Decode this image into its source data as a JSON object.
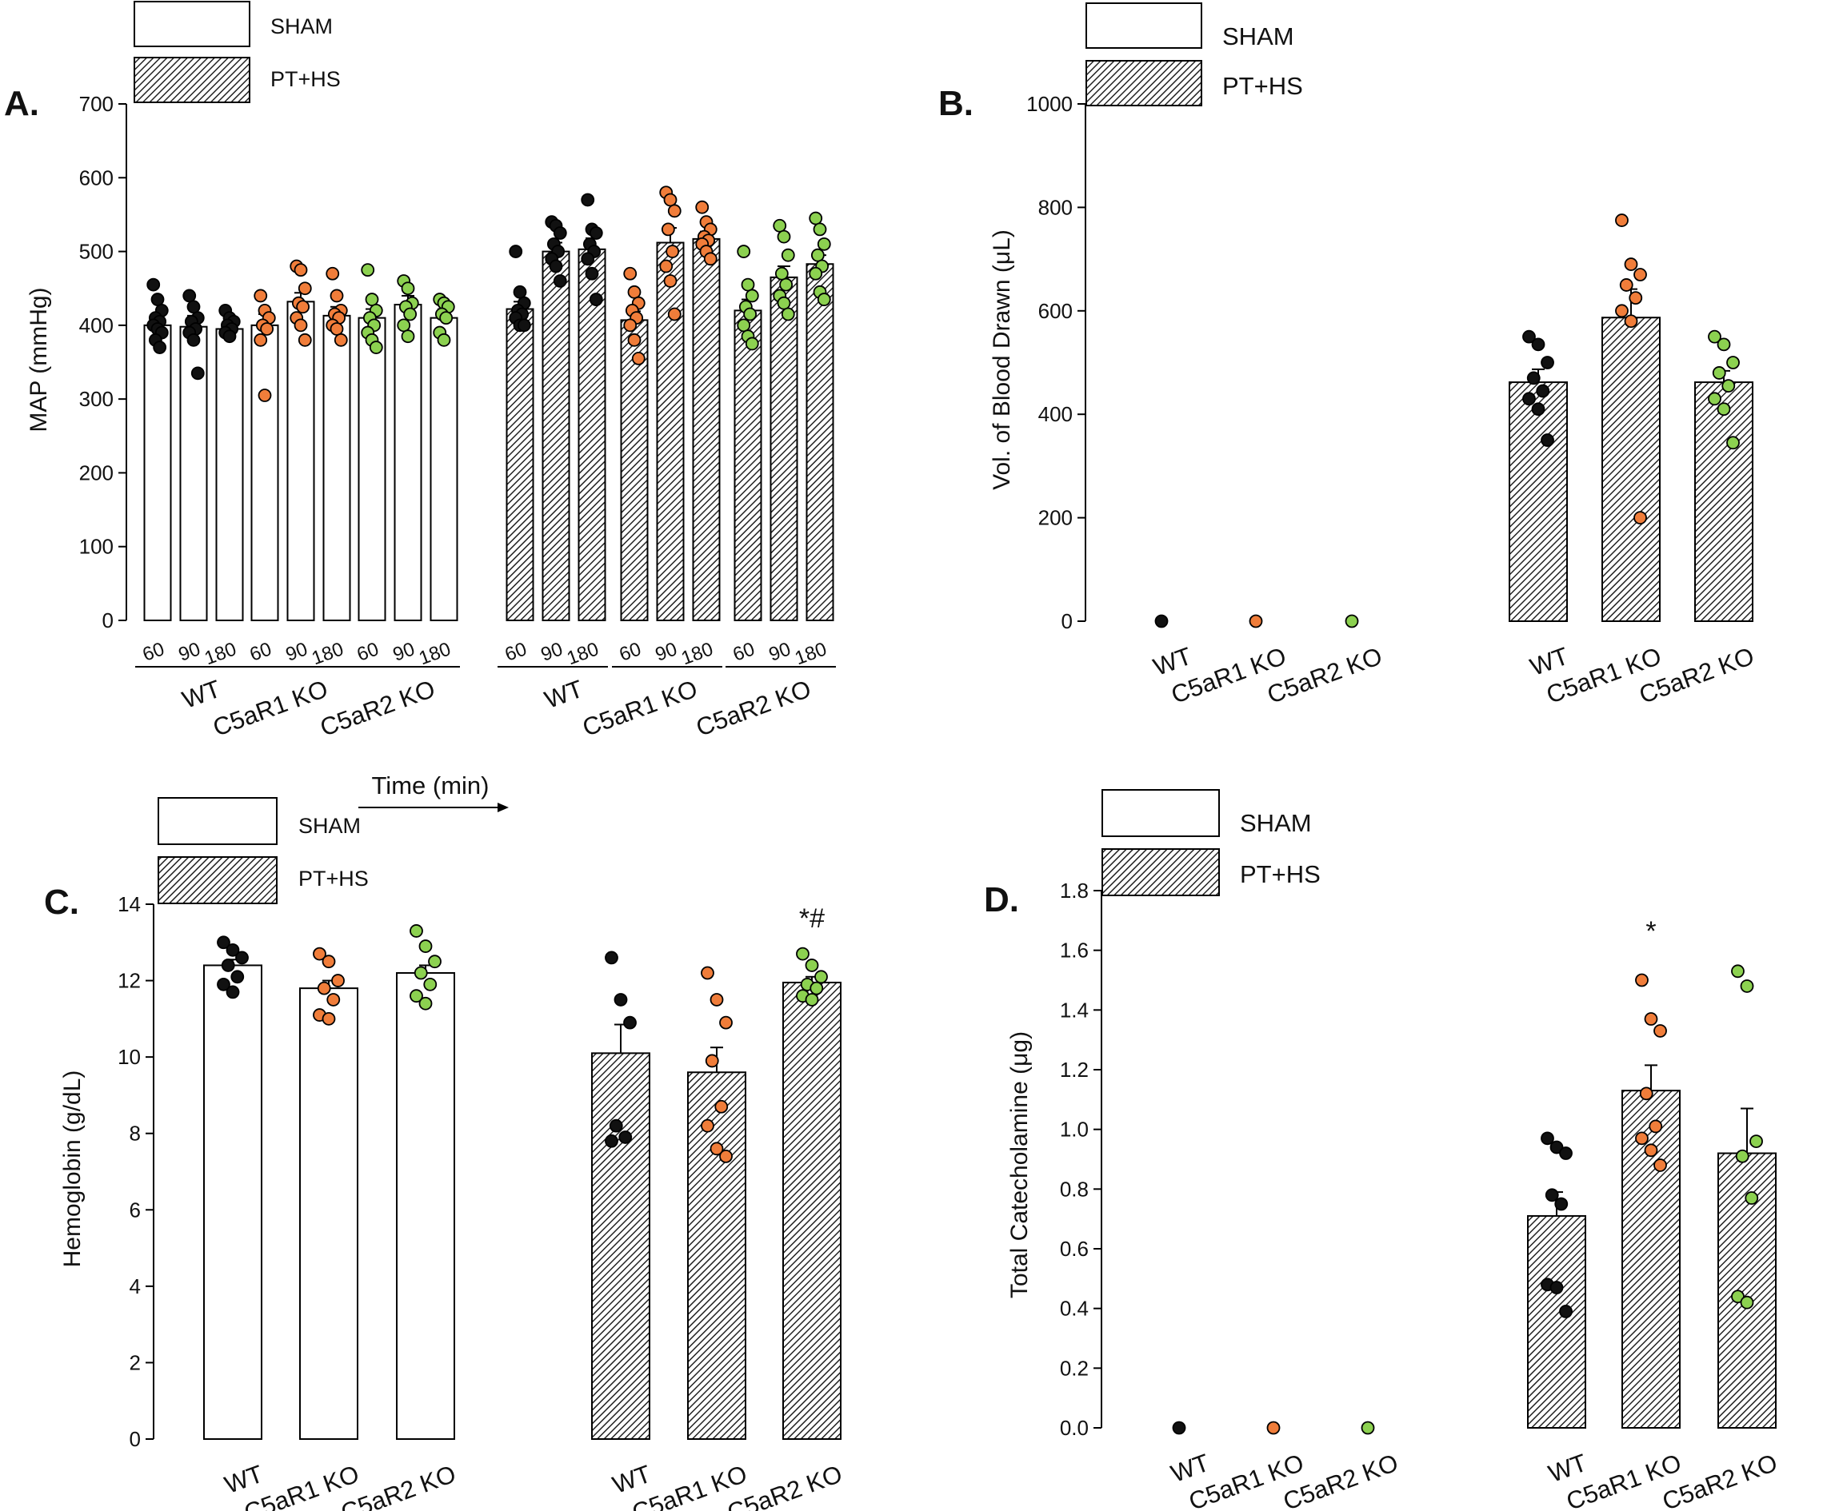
{
  "legend": {
    "sham": "SHAM",
    "pths": "PT+HS"
  },
  "colors": {
    "wt": "#111111",
    "c5ar1": "#f07d3a",
    "c5ar2": "#8cd150",
    "bar_edge": "#000000",
    "sham_fill": "#ffffff"
  },
  "chart_data": [
    {
      "panel": "A.",
      "type": "bar",
      "ylabel": "MAP (mmHg)",
      "ylim": [
        0,
        700
      ],
      "yticks": [
        "0",
        "100",
        "200",
        "300",
        "400",
        "500",
        "600",
        "700"
      ],
      "xlabel": "Time (min)",
      "time_labels": [
        "60",
        "90",
        "180"
      ],
      "groups": [
        {
          "condition": "SHAM",
          "genotype": "WT",
          "color_key": "wt",
          "bars": [
            {
              "time": "60",
              "mean": 400,
              "sem": 12,
              "points": [
                455,
                435,
                420,
                410,
                405,
                400,
                395,
                390,
                380,
                370
              ]
            },
            {
              "time": "90",
              "mean": 398,
              "sem": 15,
              "points": [
                440,
                425,
                410,
                405,
                395,
                390,
                380,
                335
              ]
            },
            {
              "time": "180",
              "mean": 395,
              "sem": 8,
              "points": [
                420,
                410,
                405,
                400,
                395,
                390,
                385
              ]
            }
          ]
        },
        {
          "condition": "SHAM",
          "genotype": "C5aR1 KO",
          "color_key": "c5ar1",
          "bars": [
            {
              "time": "60",
              "mean": 400,
              "sem": 15,
              "points": [
                440,
                420,
                410,
                400,
                395,
                380,
                305
              ]
            },
            {
              "time": "90",
              "mean": 432,
              "sem": 12,
              "points": [
                480,
                475,
                450,
                430,
                425,
                410,
                400,
                380
              ]
            },
            {
              "time": "180",
              "mean": 413,
              "sem": 12,
              "points": [
                470,
                440,
                420,
                415,
                410,
                400,
                395,
                380
              ]
            }
          ]
        },
        {
          "condition": "SHAM",
          "genotype": "C5aR2 KO",
          "color_key": "c5ar2",
          "bars": [
            {
              "time": "60",
              "mean": 410,
              "sem": 12,
              "points": [
                475,
                435,
                420,
                410,
                400,
                390,
                380,
                370
              ]
            },
            {
              "time": "90",
              "mean": 428,
              "sem": 12,
              "points": [
                460,
                450,
                430,
                425,
                415,
                400,
                385
              ]
            },
            {
              "time": "180",
              "mean": 410,
              "sem": 12,
              "points": [
                435,
                430,
                425,
                415,
                410,
                390,
                380
              ]
            }
          ]
        },
        {
          "condition": "PT+HS",
          "genotype": "WT",
          "color_key": "wt",
          "bars": [
            {
              "time": "60",
              "mean": 422,
              "sem": 10,
              "points": [
                500,
                445,
                430,
                420,
                415,
                410,
                400,
                400
              ]
            },
            {
              "time": "90",
              "mean": 500,
              "sem": 12,
              "points": [
                540,
                535,
                525,
                510,
                500,
                490,
                480,
                460
              ]
            },
            {
              "time": "180",
              "mean": 503,
              "sem": 15,
              "points": [
                570,
                530,
                525,
                510,
                500,
                490,
                470,
                435
              ]
            }
          ]
        },
        {
          "condition": "PT+HS",
          "genotype": "C5aR1 KO",
          "color_key": "c5ar1",
          "bars": [
            {
              "time": "60",
              "mean": 407,
              "sem": 12,
              "points": [
                470,
                445,
                430,
                420,
                410,
                400,
                380,
                355
              ]
            },
            {
              "time": "90",
              "mean": 512,
              "sem": 20,
              "points": [
                580,
                570,
                555,
                530,
                500,
                480,
                460,
                415
              ]
            },
            {
              "time": "180",
              "mean": 517,
              "sem": 10,
              "points": [
                560,
                540,
                530,
                520,
                515,
                510,
                500,
                490
              ]
            }
          ]
        },
        {
          "condition": "PT+HS",
          "genotype": "C5aR2 KO",
          "color_key": "c5ar2",
          "bars": [
            {
              "time": "60",
              "mean": 420,
              "sem": 15,
              "points": [
                500,
                455,
                440,
                425,
                415,
                400,
                385,
                375
              ]
            },
            {
              "time": "90",
              "mean": 465,
              "sem": 15,
              "points": [
                535,
                520,
                495,
                470,
                455,
                440,
                430,
                415
              ]
            },
            {
              "time": "180",
              "mean": 483,
              "sem": 12,
              "points": [
                545,
                530,
                510,
                495,
                480,
                470,
                445,
                435
              ]
            }
          ]
        }
      ]
    },
    {
      "panel": "B.",
      "type": "bar",
      "ylabel": "Vol. of Blood Drawn (μL)",
      "ylim": [
        0,
        1000
      ],
      "yticks": [
        "0",
        "200",
        "400",
        "600",
        "800",
        "1000"
      ],
      "groups": [
        {
          "condition": "SHAM",
          "genotype": "WT",
          "color_key": "wt",
          "mean": 0,
          "sem": 0,
          "points": [
            0
          ]
        },
        {
          "condition": "SHAM",
          "genotype": "C5aR1 KO",
          "color_key": "c5ar1",
          "mean": 0,
          "sem": 0,
          "points": [
            0
          ]
        },
        {
          "condition": "SHAM",
          "genotype": "C5aR2 KO",
          "color_key": "c5ar2",
          "mean": 0,
          "sem": 0,
          "points": [
            0
          ]
        },
        {
          "condition": "PT+HS",
          "genotype": "WT",
          "color_key": "wt",
          "mean": 462,
          "sem": 25,
          "points": [
            550,
            535,
            500,
            470,
            445,
            430,
            410,
            350
          ]
        },
        {
          "condition": "PT+HS",
          "genotype": "C5aR1 KO",
          "color_key": "c5ar1",
          "mean": 587,
          "sem": 55,
          "points": [
            775,
            690,
            670,
            650,
            625,
            600,
            580,
            200
          ]
        },
        {
          "condition": "PT+HS",
          "genotype": "C5aR2 KO",
          "color_key": "c5ar2",
          "mean": 462,
          "sem": 22,
          "points": [
            550,
            535,
            500,
            480,
            455,
            430,
            410,
            345
          ]
        }
      ]
    },
    {
      "panel": "C.",
      "type": "bar",
      "ylabel": "Hemoglobin (g/dL)",
      "ylim": [
        0,
        14
      ],
      "yticks": [
        "0",
        "2",
        "4",
        "6",
        "8",
        "10",
        "12",
        "14"
      ],
      "annotation": {
        "group": "PT+HS C5aR2 KO",
        "text": "*#"
      },
      "groups": [
        {
          "condition": "SHAM",
          "genotype": "WT",
          "color_key": "wt",
          "mean": 12.4,
          "sem": 0.15,
          "points": [
            13.0,
            12.8,
            12.6,
            12.4,
            12.1,
            11.9,
            11.7
          ]
        },
        {
          "condition": "SHAM",
          "genotype": "C5aR1 KO",
          "color_key": "c5ar1",
          "mean": 11.8,
          "sem": 0.2,
          "points": [
            12.7,
            12.5,
            12.0,
            11.8,
            11.5,
            11.1,
            11.0
          ]
        },
        {
          "condition": "SHAM",
          "genotype": "C5aR2 KO",
          "color_key": "c5ar2",
          "mean": 12.2,
          "sem": 0.2,
          "points": [
            13.3,
            12.9,
            12.5,
            12.2,
            11.9,
            11.6,
            11.4
          ]
        },
        {
          "condition": "PT+HS",
          "genotype": "WT",
          "color_key": "wt",
          "mean": 10.1,
          "sem": 0.75,
          "points": [
            12.6,
            11.5,
            10.9,
            8.2,
            7.9,
            7.8
          ]
        },
        {
          "condition": "PT+HS",
          "genotype": "C5aR1 KO",
          "color_key": "c5ar1",
          "mean": 9.6,
          "sem": 0.65,
          "points": [
            12.2,
            11.5,
            10.9,
            9.9,
            8.7,
            8.2,
            7.6,
            7.4
          ]
        },
        {
          "condition": "PT+HS",
          "genotype": "C5aR2 KO",
          "color_key": "c5ar2",
          "mean": 11.95,
          "sem": 0.15,
          "points": [
            12.7,
            12.4,
            12.1,
            11.9,
            11.8,
            11.6,
            11.5
          ]
        }
      ]
    },
    {
      "panel": "D.",
      "type": "bar",
      "ylabel": "Total Catecholamine (μg)",
      "ylim": [
        0,
        1.8
      ],
      "yticks": [
        "0.0",
        "0.2",
        "0.4",
        "0.6",
        "0.8",
        "1.0",
        "1.2",
        "1.4",
        "1.6",
        "1.8"
      ],
      "annotation": {
        "group": "PT+HS C5aR1 KO",
        "text": "*"
      },
      "groups": [
        {
          "condition": "SHAM",
          "genotype": "WT",
          "color_key": "wt",
          "mean": 0,
          "sem": 0,
          "points": [
            0
          ]
        },
        {
          "condition": "SHAM",
          "genotype": "C5aR1 KO",
          "color_key": "c5ar1",
          "mean": 0,
          "sem": 0,
          "points": [
            0
          ]
        },
        {
          "condition": "SHAM",
          "genotype": "C5aR2 KO",
          "color_key": "c5ar2",
          "mean": 0,
          "sem": 0,
          "points": [
            0
          ]
        },
        {
          "condition": "PT+HS",
          "genotype": "WT",
          "color_key": "wt",
          "mean": 0.71,
          "sem": 0.08,
          "points": [
            0.97,
            0.94,
            0.92,
            0.78,
            0.75,
            0.48,
            0.47,
            0.39
          ]
        },
        {
          "condition": "PT+HS",
          "genotype": "C5aR1 KO",
          "color_key": "c5ar1",
          "mean": 1.13,
          "sem": 0.085,
          "points": [
            1.5,
            1.37,
            1.33,
            1.12,
            1.01,
            0.97,
            0.93,
            0.88
          ]
        },
        {
          "condition": "PT+HS",
          "genotype": "C5aR2 KO",
          "color_key": "c5ar2",
          "mean": 0.92,
          "sem": 0.15,
          "points": [
            1.53,
            1.48,
            0.96,
            0.91,
            0.77,
            0.44,
            0.42
          ]
        }
      ]
    }
  ]
}
